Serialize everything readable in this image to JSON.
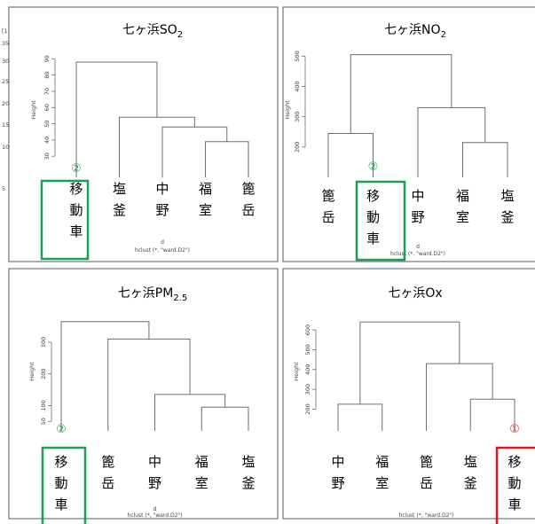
{
  "chart_data": [
    {
      "type": "dendrogram",
      "title": "七ヶ浜SO",
      "title_sub": "2",
      "ylabel": "Height",
      "yticks": [
        30,
        40,
        50,
        60,
        70,
        80,
        90
      ],
      "ylim": [
        17,
        100
      ],
      "xlabel_d": "d",
      "xlabel_hclust": "hclust (*, \"ward.D2\")",
      "leaves": [
        "移動車",
        "塩釜",
        "中野",
        "福室",
        "篦岳"
      ],
      "merges": [
        [
          3,
          4,
          39
        ],
        [
          2,
          5,
          48
        ],
        [
          1,
          6,
          54
        ],
        [
          0,
          7,
          88
        ]
      ],
      "highlight": {
        "leaf": 0,
        "mark": "②",
        "color": "#1e9e50"
      }
    },
    {
      "type": "dendrogram",
      "title": "七ヶ浜NO",
      "title_sub": "2",
      "ylabel": "Height",
      "yticks": [
        200,
        300,
        400,
        500
      ],
      "ylim": [
        100,
        545
      ],
      "xlabel_d": "d",
      "xlabel_hclust": "hclust (*, \"ward.D2\")",
      "leaves": [
        "篦岳",
        "移動車",
        "中野",
        "福室",
        "塩釜"
      ],
      "merges": [
        [
          3,
          4,
          215
        ],
        [
          0,
          1,
          245
        ],
        [
          2,
          5,
          330
        ],
        [
          6,
          7,
          505
        ]
      ],
      "highlight": {
        "leaf": 1,
        "mark": "②",
        "color": "#1e9e50"
      }
    },
    {
      "type": "dendrogram",
      "title": "七ヶ浜PM",
      "title_sub": "2.5",
      "ylabel": "Height",
      "yticks": [
        50,
        100,
        200,
        300
      ],
      "ylim": [
        20,
        395
      ],
      "xlabel_d": "d",
      "xlabel_hclust": "hclust (*, \"ward.D2\")",
      "leaves": [
        "移動車",
        "篦岳",
        "中野",
        "福室",
        "塩釜"
      ],
      "merges": [
        [
          3,
          4,
          95
        ],
        [
          2,
          5,
          135
        ],
        [
          1,
          6,
          310
        ],
        [
          0,
          7,
          365
        ]
      ],
      "highlight": {
        "leaf": 0,
        "mark": "②",
        "color": "#1e9e50"
      }
    },
    {
      "type": "dendrogram",
      "title": "七ヶ浜Ox",
      "title_sub": "",
      "ylabel": "Height",
      "yticks": [
        200,
        300,
        400,
        500,
        600
      ],
      "ylim": [
        90,
        690
      ],
      "xlabel_d": "",
      "xlabel_hclust": "hclust (*, \"ward.D2\")",
      "leaves": [
        "中野",
        "福室",
        "篦岳",
        "塩釜",
        "移動車"
      ],
      "merges": [
        [
          0,
          1,
          225
        ],
        [
          3,
          4,
          250
        ],
        [
          2,
          6,
          430
        ],
        [
          5,
          7,
          640
        ]
      ],
      "highlight": {
        "leaf": 4,
        "mark": "①",
        "color": "#e0141e"
      }
    }
  ],
  "left_fragment_ticks": [
    "[1",
    "35",
    "30",
    "25",
    "20",
    "15",
    "10",
    "5"
  ]
}
